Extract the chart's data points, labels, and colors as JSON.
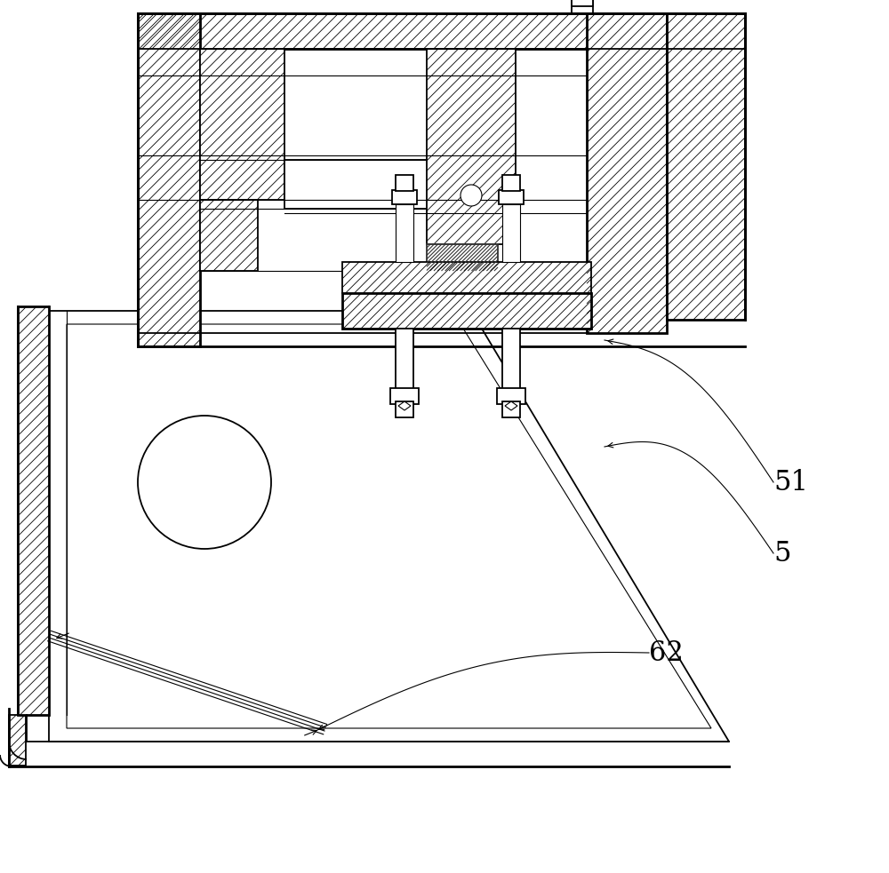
{
  "bg_color": "#ffffff",
  "line_color": "#000000",
  "label_51": "51",
  "label_5": "5",
  "label_62": "62",
  "label_fontsize": 22,
  "figw": 10.0,
  "figh": 9.83
}
